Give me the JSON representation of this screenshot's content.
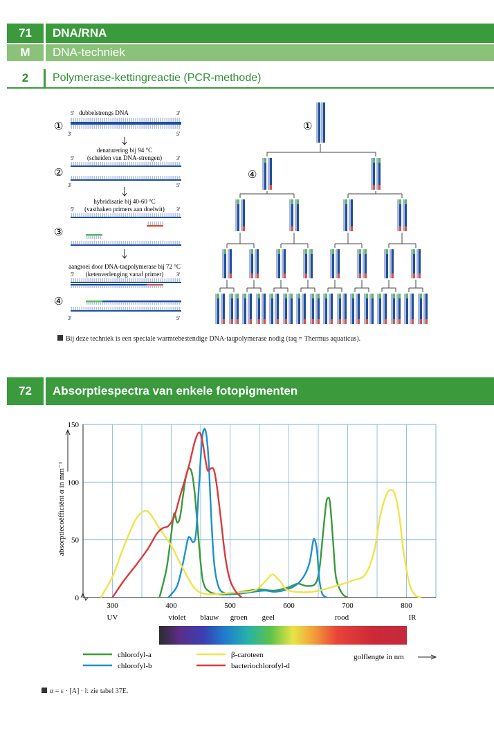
{
  "section71": {
    "number": "71",
    "title": "DNA/RNA"
  },
  "sectionM": {
    "letter": "M",
    "title": "DNA-techniek"
  },
  "section2": {
    "number": "2",
    "title": "Polymerase-kettingreactie (PCR-methode)"
  },
  "pcr": {
    "step_markers": [
      "①",
      "②",
      "③",
      "④"
    ],
    "step1": "dubbelstrengs DNA",
    "step2_line1": "denaturering bij 94 °C",
    "step2_line2": "(scheiden van DNA-strengen)",
    "step3_line1": "hybridisatie bij 40-60 °C",
    "step3_line2": "(vasthaken primers aan doelwit)",
    "step4_line1": "aangroei door DNA-taqpolymerase bij 72 °C",
    "step4_line2": "(ketenverlenging vanaf primer)",
    "end5": "5'",
    "end3": "3'",
    "tree_marker_top": "①",
    "tree_marker_level1": "④",
    "caption": "Bij deze techniek is een speciale warmtebestendige DNA-taqpolymerase nodig (taq = Thermus aquaticus).",
    "colors": {
      "strand": "#1f4f9c",
      "light": "#a9b7dc",
      "primer_green": "#5cb85c",
      "primer_red": "#e0533a"
    }
  },
  "section72": {
    "number": "72",
    "title": "Absorptiespectra van enkele fotopigmenten"
  },
  "chart_data": {
    "type": "line",
    "xlabel": "golflengte in nm",
    "ylabel": "absorptiecoëfficiënt α in mm⁻¹",
    "xlim": [
      250,
      850
    ],
    "ylim": [
      0,
      150
    ],
    "xticks": [
      300,
      400,
      500,
      600,
      700,
      800
    ],
    "yticks": [
      0,
      50,
      100,
      150
    ],
    "grid": true,
    "legend_position": "bottom",
    "color_regions": [
      {
        "label": "UV",
        "x": 300
      },
      {
        "label": "violet",
        "x": 410
      },
      {
        "label": "blauw",
        "x": 465
      },
      {
        "label": "groen",
        "x": 515
      },
      {
        "label": "geel",
        "x": 565
      },
      {
        "label": "rood",
        "x": 690
      },
      {
        "label": "IR",
        "x": 810
      }
    ],
    "series": [
      {
        "name": "chlorofyl-a",
        "color": "#3a9a3c",
        "points": [
          [
            380,
            0
          ],
          [
            392,
            25
          ],
          [
            400,
            55
          ],
          [
            405,
            73
          ],
          [
            410,
            65
          ],
          [
            415,
            70
          ],
          [
            420,
            88
          ],
          [
            425,
            105
          ],
          [
            430,
            112
          ],
          [
            435,
            108
          ],
          [
            440,
            90
          ],
          [
            445,
            60
          ],
          [
            450,
            30
          ],
          [
            455,
            12
          ],
          [
            465,
            5
          ],
          [
            480,
            3
          ],
          [
            500,
            3
          ],
          [
            520,
            5
          ],
          [
            550,
            7
          ],
          [
            575,
            6
          ],
          [
            600,
            9
          ],
          [
            615,
            12
          ],
          [
            630,
            10
          ],
          [
            645,
            12
          ],
          [
            652,
            25
          ],
          [
            658,
            55
          ],
          [
            663,
            80
          ],
          [
            666,
            86
          ],
          [
            670,
            82
          ],
          [
            675,
            50
          ],
          [
            680,
            18
          ],
          [
            690,
            4
          ],
          [
            700,
            0
          ]
        ]
      },
      {
        "name": "chlorofyl-b",
        "color": "#1f8fd0",
        "points": [
          [
            395,
            0
          ],
          [
            410,
            10
          ],
          [
            420,
            30
          ],
          [
            428,
            50
          ],
          [
            432,
            52
          ],
          [
            437,
            48
          ],
          [
            442,
            55
          ],
          [
            447,
            95
          ],
          [
            452,
            135
          ],
          [
            456,
            146
          ],
          [
            460,
            140
          ],
          [
            464,
            115
          ],
          [
            468,
            70
          ],
          [
            473,
            30
          ],
          [
            480,
            10
          ],
          [
            490,
            4
          ],
          [
            510,
            3
          ],
          [
            540,
            5
          ],
          [
            560,
            6
          ],
          [
            575,
            5
          ],
          [
            590,
            6
          ],
          [
            610,
            10
          ],
          [
            625,
            18
          ],
          [
            635,
            30
          ],
          [
            641,
            48
          ],
          [
            644,
            50
          ],
          [
            648,
            40
          ],
          [
            652,
            15
          ],
          [
            657,
            3
          ],
          [
            665,
            0
          ]
        ]
      },
      {
        "name": "β-caroteen",
        "color": "#f0e34a",
        "points": [
          [
            280,
            0
          ],
          [
            300,
            18
          ],
          [
            320,
            45
          ],
          [
            340,
            68
          ],
          [
            355,
            75
          ],
          [
            365,
            72
          ],
          [
            380,
            60
          ],
          [
            400,
            45
          ],
          [
            420,
            25
          ],
          [
            440,
            8
          ],
          [
            460,
            3
          ],
          [
            500,
            4
          ],
          [
            540,
            6
          ],
          [
            560,
            14
          ],
          [
            572,
            20
          ],
          [
            585,
            14
          ],
          [
            600,
            6
          ],
          [
            640,
            5
          ],
          [
            680,
            10
          ],
          [
            710,
            15
          ],
          [
            730,
            20
          ],
          [
            745,
            40
          ],
          [
            755,
            70
          ],
          [
            765,
            88
          ],
          [
            772,
            93
          ],
          [
            780,
            90
          ],
          [
            788,
            70
          ],
          [
            795,
            40
          ],
          [
            805,
            12
          ],
          [
            815,
            2
          ],
          [
            825,
            0
          ]
        ]
      },
      {
        "name": "bacteriochlorofyl-d",
        "color": "#d93a3a",
        "points": [
          [
            300,
            0
          ],
          [
            320,
            15
          ],
          [
            340,
            28
          ],
          [
            360,
            42
          ],
          [
            375,
            55
          ],
          [
            385,
            60
          ],
          [
            395,
            62
          ],
          [
            405,
            70
          ],
          [
            415,
            88
          ],
          [
            425,
            105
          ],
          [
            432,
            118
          ],
          [
            440,
            135
          ],
          [
            447,
            143
          ],
          [
            452,
            138
          ],
          [
            458,
            120
          ],
          [
            462,
            110
          ],
          [
            468,
            112
          ],
          [
            473,
            110
          ],
          [
            478,
            95
          ],
          [
            485,
            65
          ],
          [
            492,
            35
          ],
          [
            500,
            15
          ],
          [
            510,
            5
          ],
          [
            520,
            0
          ]
        ]
      }
    ]
  },
  "formula": "α = ε · [A] · l: zie tabel 37E."
}
